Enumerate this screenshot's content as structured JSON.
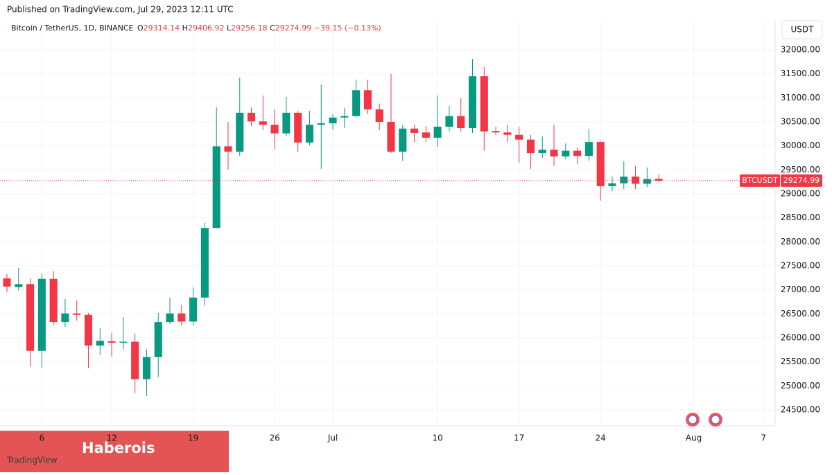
{
  "header": "Published on TradingView.com, Jul 29, 2023 12:11 UTC",
  "legend": {
    "symbol_title": "Bitcoin / TetherUS, 1D, BINANCE",
    "o": "O",
    "h": "H",
    "l": "L",
    "c": "C",
    "change": "−39.15 (−0.13%)"
  },
  "currency": "USDT",
  "symbol": "BTCUSDT",
  "watermark": "Haberois",
  "logo": "TradingView",
  "chart_data": {
    "type": "candlestick",
    "up_color": "#089981",
    "down_color": "#f23645",
    "x": [
      "2023-06-03",
      "2023-06-04",
      "2023-06-05",
      "2023-06-06",
      "2023-06-07",
      "2023-06-08",
      "2023-06-09",
      "2023-06-10",
      "2023-06-11",
      "2023-06-12",
      "2023-06-13",
      "2023-06-14",
      "2023-06-15",
      "2023-06-16",
      "2023-06-17",
      "2023-06-18",
      "2023-06-19",
      "2023-06-20",
      "2023-06-21",
      "2023-06-22",
      "2023-06-23",
      "2023-06-24",
      "2023-06-25",
      "2023-06-26",
      "2023-06-27",
      "2023-06-28",
      "2023-06-29",
      "2023-06-30",
      "2023-07-01",
      "2023-07-02",
      "2023-07-03",
      "2023-07-04",
      "2023-07-05",
      "2023-07-06",
      "2023-07-07",
      "2023-07-08",
      "2023-07-09",
      "2023-07-10",
      "2023-07-11",
      "2023-07-12",
      "2023-07-13",
      "2023-07-14",
      "2023-07-15",
      "2023-07-16",
      "2023-07-17",
      "2023-07-18",
      "2023-07-19",
      "2023-07-20",
      "2023-07-21",
      "2023-07-22",
      "2023-07-23",
      "2023-07-24",
      "2023-07-25",
      "2023-07-26",
      "2023-07-27",
      "2023-07-28",
      "2023-07-29"
    ],
    "open": [
      27240,
      27060,
      27120,
      25730,
      27230,
      26330,
      26510,
      26480,
      25840,
      25930,
      25900,
      25920,
      25140,
      25600,
      26330,
      26510,
      26340,
      26840,
      28290,
      29990,
      29880,
      30690,
      30510,
      30440,
      30260,
      30690,
      30070,
      30440,
      30470,
      30590,
      30620,
      31160,
      30760,
      30500,
      29880,
      30360,
      30280,
      30170,
      30400,
      30620,
      30370,
      31450,
      30310,
      30280,
      30230,
      30130,
      29850,
      29920,
      29780,
      29900,
      29790,
      30080,
      29160,
      29220,
      29360,
      29210,
      29314.14
    ],
    "high": [
      27330,
      27460,
      27240,
      27340,
      27390,
      26810,
      26780,
      26520,
      26200,
      26110,
      26430,
      26090,
      25760,
      26520,
      26840,
      26690,
      27050,
      28400,
      30800,
      30500,
      31420,
      30800,
      31050,
      30760,
      31020,
      30730,
      30730,
      31280,
      30660,
      30790,
      31380,
      31380,
      30880,
      31500,
      30440,
      30440,
      30410,
      31050,
      30830,
      30990,
      31810,
      31640,
      30400,
      30440,
      30400,
      30230,
      30200,
      30440,
      30050,
      29970,
      30360,
      30100,
      29360,
      29680,
      29580,
      29550,
      29406.92
    ],
    "low": [
      26950,
      26990,
      25400,
      25370,
      26260,
      26230,
      26360,
      25370,
      25640,
      25610,
      25760,
      24850,
      24790,
      25180,
      26290,
      26260,
      26260,
      26670,
      28280,
      29500,
      29790,
      30410,
      30330,
      29940,
      30200,
      29870,
      30010,
      29520,
      30340,
      30370,
      30590,
      30660,
      30330,
      29850,
      29690,
      30080,
      30080,
      29980,
      30300,
      30300,
      30270,
      29900,
      30230,
      30080,
      29650,
      29520,
      29750,
      29580,
      29720,
      29620,
      29690,
      28860,
      29060,
      29100,
      29100,
      29140,
      29256.18
    ],
    "close": [
      27070,
      27120,
      25730,
      27230,
      26330,
      26510,
      26480,
      25840,
      25940,
      25900,
      25920,
      25140,
      25600,
      26330,
      26510,
      26340,
      26840,
      28290,
      29990,
      29880,
      30690,
      30510,
      30440,
      30260,
      30690,
      30070,
      30440,
      30470,
      30590,
      30620,
      31160,
      30760,
      30500,
      29880,
      30360,
      30270,
      30170,
      30400,
      30620,
      30370,
      31450,
      30300,
      30280,
      30230,
      30130,
      29850,
      29920,
      29780,
      29900,
      29790,
      30080,
      29160,
      29220,
      29360,
      29210,
      29310,
      29274.99
    ],
    "xlim": [
      "2023-06-03",
      "2023-08-08"
    ],
    "xticks": [
      {
        "value": "2023-06-06",
        "label": "6"
      },
      {
        "value": "2023-06-12",
        "label": "12"
      },
      {
        "value": "2023-06-19",
        "label": "19"
      },
      {
        "value": "2023-06-26",
        "label": "26"
      },
      {
        "value": "2023-07-01",
        "label": "Jul"
      },
      {
        "value": "2023-07-10",
        "label": "10"
      },
      {
        "value": "2023-07-17",
        "label": "17"
      },
      {
        "value": "2023-07-24",
        "label": "24"
      },
      {
        "value": "2023-08-01",
        "label": "Aug"
      },
      {
        "value": "2023-08-07",
        "label": "7"
      }
    ],
    "ylim": [
      24168,
      32606
    ],
    "yticks": [
      {
        "value": 24500,
        "label": "24500.00"
      },
      {
        "value": 25000,
        "label": "25000.00"
      },
      {
        "value": 25500,
        "label": "25500.00"
      },
      {
        "value": 26000,
        "label": "26000.00"
      },
      {
        "value": 26500,
        "label": "26500.00"
      },
      {
        "value": 27000,
        "label": "27000.00"
      },
      {
        "value": 27500,
        "label": "27500.00"
      },
      {
        "value": 28000,
        "label": "28000.00"
      },
      {
        "value": 28500,
        "label": "28500.00"
      },
      {
        "value": 29000,
        "label": "29000.00"
      },
      {
        "value": 29500,
        "label": "29500.00"
      },
      {
        "value": 30000,
        "label": "30000.00"
      },
      {
        "value": 30500,
        "label": "30500.00"
      },
      {
        "value": 31000,
        "label": "31000.00"
      },
      {
        "value": 31500,
        "label": "31500.00"
      },
      {
        "value": 32000,
        "label": "32000.00"
      }
    ],
    "grid": true
  }
}
